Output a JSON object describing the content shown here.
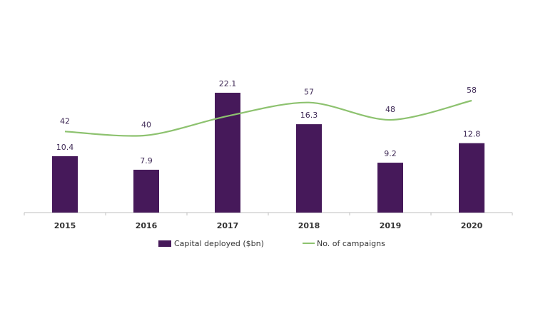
{
  "chart_data": {
    "type": "bar",
    "categories": [
      "2015",
      "2016",
      "2017",
      "2018",
      "2019",
      "2020"
    ],
    "series": [
      {
        "name": "Capital deployed ($bn)",
        "type": "bar",
        "color": "#46195a",
        "values": [
          10.4,
          7.9,
          22.1,
          16.3,
          9.2,
          12.8
        ],
        "labels": [
          "10.4",
          "7.9",
          "22.1",
          "16.3",
          "9.2",
          "12.8"
        ]
      },
      {
        "name": "No. of campaigns",
        "type": "line",
        "color": "#8dc26f",
        "values": [
          42,
          40,
          50,
          57,
          48,
          58
        ],
        "labels": [
          "42",
          "40",
          "",
          "57",
          "48",
          "58"
        ]
      }
    ],
    "bar_ylim": [
      0,
      22.1
    ],
    "line_ylim": [
      0,
      58
    ],
    "legend_position": "bottom-center",
    "grid": false
  }
}
